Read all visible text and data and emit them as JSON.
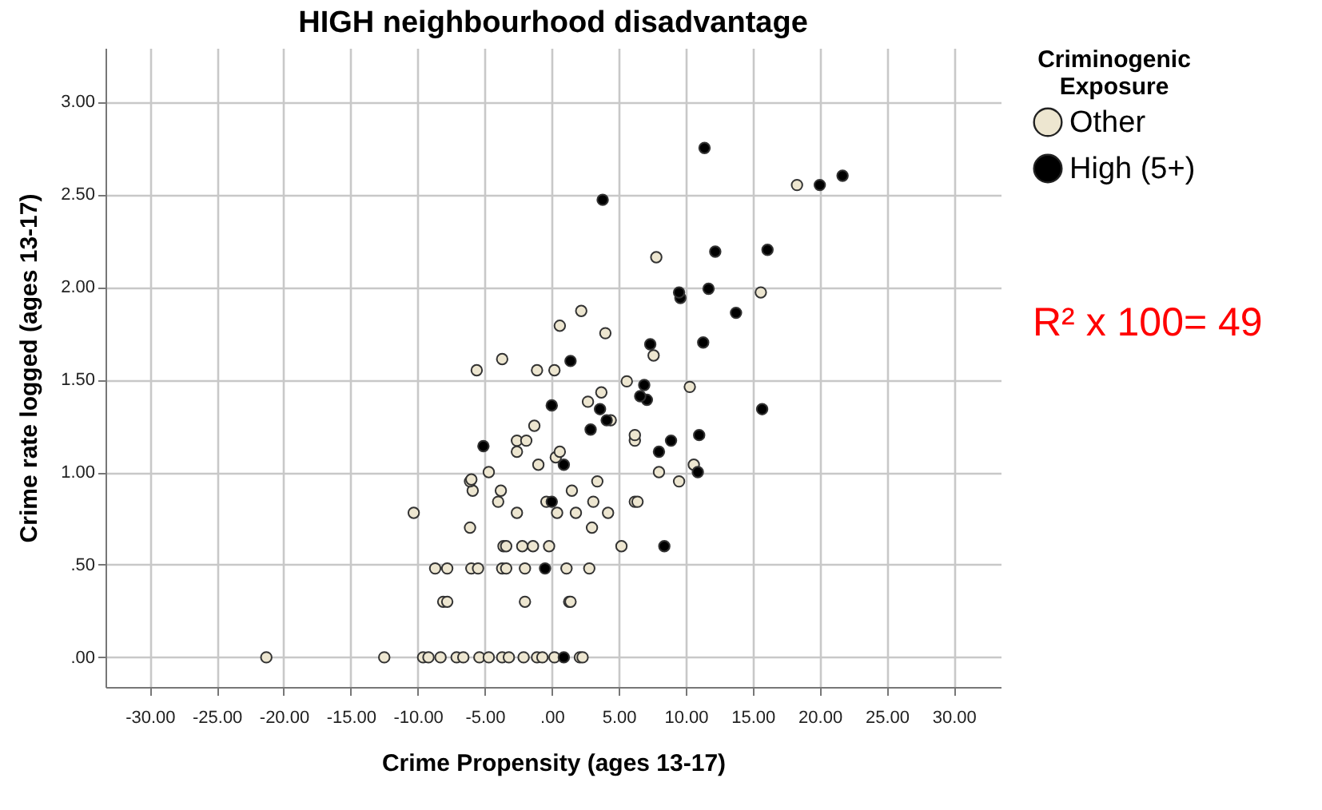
{
  "chart_data": {
    "type": "scatter",
    "title": "HIGH neighbourhood disadvantage",
    "xlabel": "Crime Propensity (ages 13-17)",
    "ylabel": "Crime rate logged (ages 13-17)",
    "legend_title": "Criminogenic Exposure",
    "legend": "top right",
    "grid": true,
    "marker": "circle",
    "xlim": [
      -33.3,
      33.5
    ],
    "ylim": [
      -0.16,
      3.29
    ],
    "xticks": [
      {
        "value": -30,
        "label": "-30.00"
      },
      {
        "value": -25,
        "label": "-25.00"
      },
      {
        "value": -20,
        "label": "-20.00"
      },
      {
        "value": -15,
        "label": "-15.00"
      },
      {
        "value": -10,
        "label": "-10.00"
      },
      {
        "value": -5,
        "label": "-5.00"
      },
      {
        "value": 0,
        "label": ".00"
      },
      {
        "value": 5,
        "label": "5.00"
      },
      {
        "value": 10,
        "label": "10.00"
      },
      {
        "value": 15,
        "label": "15.00"
      },
      {
        "value": 20,
        "label": "20.00"
      },
      {
        "value": 25,
        "label": "25.00"
      },
      {
        "value": 30,
        "label": "30.00"
      }
    ],
    "yticks": [
      {
        "value": 0,
        "label": ".00"
      },
      {
        "value": 0.5,
        "label": ".50"
      },
      {
        "value": 1,
        "label": "1.00"
      },
      {
        "value": 1.5,
        "label": "1.50"
      },
      {
        "value": 2,
        "label": "2.00"
      },
      {
        "value": 2.5,
        "label": "2.50"
      },
      {
        "value": 3,
        "label": "3.00"
      }
    ],
    "annotations": [
      "R² x 100= 49"
    ],
    "series": [
      {
        "name": "Other",
        "color": "#ede6d0",
        "x": [
          -21.3,
          -12.5,
          -9.6,
          -9.2,
          -8.3,
          -7.1,
          -6.6,
          -5.4,
          -4.7,
          -3.7,
          -3.2,
          -2.1,
          -1.1,
          -0.7,
          0.2,
          2.1,
          2.3,
          -8.1,
          -7.8,
          -2.0,
          1.3,
          1.4,
          -8.7,
          -7.8,
          -6.0,
          -5.5,
          -3.7,
          -3.4,
          -2.0,
          1.1,
          2.8,
          -3.6,
          -3.4,
          -2.2,
          -1.4,
          -0.2,
          5.2,
          -6.1,
          3.0,
          -10.3,
          -2.6,
          0.4,
          1.8,
          4.2,
          -4.0,
          -0.4,
          3.1,
          6.2,
          6.4,
          -5.9,
          -3.8,
          1.5,
          -6.1,
          -6.0,
          3.4,
          9.5,
          -4.7,
          8.0,
          -1.0,
          10.6,
          0.3,
          -2.6,
          0.6,
          -2.6,
          -1.9,
          6.2,
          6.2,
          -1.3,
          4.4,
          2.7,
          3.7,
          10.3,
          5.6,
          -5.6,
          -1.1,
          0.2,
          -3.7,
          7.6,
          4.0,
          0.6,
          2.2,
          15.6,
          7.8,
          18.3
        ],
        "values": [
          0,
          0,
          0,
          0,
          0,
          0,
          0,
          0,
          0,
          0,
          0,
          0,
          0,
          0,
          0,
          0,
          0,
          0.3,
          0.3,
          0.3,
          0.3,
          0.3,
          0.48,
          0.48,
          0.48,
          0.48,
          0.48,
          0.48,
          0.48,
          0.48,
          0.48,
          0.6,
          0.6,
          0.6,
          0.6,
          0.6,
          0.6,
          0.7,
          0.7,
          0.78,
          0.78,
          0.78,
          0.78,
          0.78,
          0.84,
          0.84,
          0.84,
          0.84,
          0.84,
          0.9,
          0.9,
          0.9,
          0.95,
          0.96,
          0.95,
          0.95,
          1.0,
          1.0,
          1.04,
          1.04,
          1.08,
          1.11,
          1.11,
          1.17,
          1.17,
          1.17,
          1.2,
          1.25,
          1.28,
          1.38,
          1.43,
          1.46,
          1.49,
          1.55,
          1.55,
          1.55,
          1.61,
          1.63,
          1.75,
          1.79,
          1.87,
          1.97,
          2.16,
          2.55
        ]
      },
      {
        "name": "High (5+)",
        "color": "#000000",
        "x": [
          0.9,
          -0.5,
          8.4,
          0.0,
          10.9,
          0.9,
          8.0,
          -5.1,
          8.9,
          11.0,
          2.9,
          4.1,
          3.6,
          15.7,
          0.0,
          7.1,
          6.6,
          6.9,
          1.4,
          7.35,
          11.3,
          13.75,
          9.6,
          9.5,
          11.7,
          12.2,
          16.1,
          3.8,
          20.0,
          21.7,
          11.4
        ],
        "values": [
          0,
          0.48,
          0.6,
          0.84,
          1.0,
          1.04,
          1.11,
          1.14,
          1.17,
          1.2,
          1.23,
          1.28,
          1.34,
          1.34,
          1.36,
          1.39,
          1.41,
          1.47,
          1.6,
          1.69,
          1.7,
          1.86,
          1.94,
          1.97,
          1.99,
          2.19,
          2.2,
          2.47,
          2.55,
          2.6,
          2.75
        ]
      }
    ]
  }
}
